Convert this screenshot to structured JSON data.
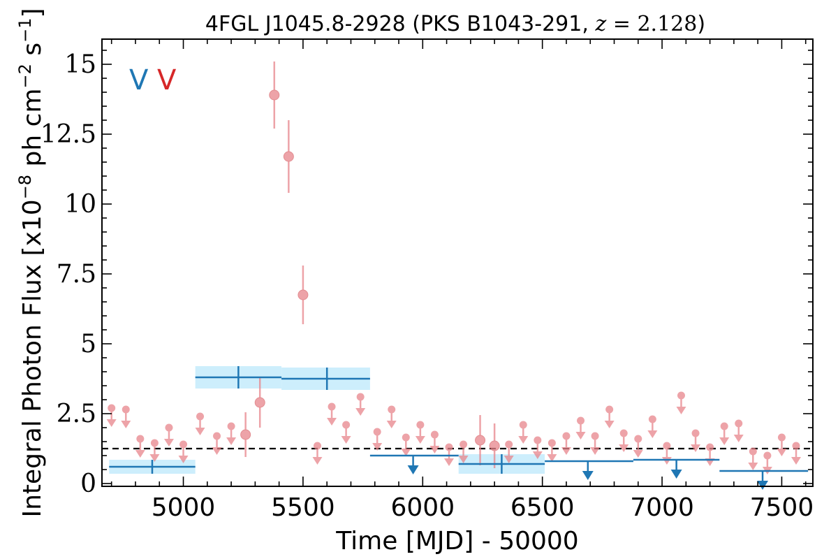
{
  "chart_data": {
    "type": "scatter",
    "title": "4FGL J1045.8-2928 (PKS B1043-291, z = 2.128)",
    "xlabel": "Time [MJD] - 50000",
    "ylabel": "Integral Photon Flux [x10^-8 ph cm^-2 s^-1]",
    "xlim": [
      4660,
      7630
    ],
    "ylim": [
      -0.1,
      15.9
    ],
    "x_ticks": [
      5000,
      5500,
      6000,
      6500,
      7000,
      7500
    ],
    "x_tick_labels": [
      "5000",
      "5500",
      "6000",
      "6500",
      "7000",
      "7500"
    ],
    "y_ticks": [
      0,
      2.5,
      5,
      7.5,
      10,
      12.5,
      15
    ],
    "y_tick_labels": [
      "0",
      "2.5",
      "5",
      "7.5",
      "10",
      "12.5",
      "15"
    ],
    "mean_flux": 1.25,
    "markers": [
      {
        "label": "V",
        "color": "#1f77b4"
      },
      {
        "label": "V",
        "color": "#d62728"
      }
    ],
    "colors": {
      "fine": "#e8858b",
      "coarse": "#1f77b4",
      "band": "#cdeefc",
      "mean_line": "#000000"
    },
    "series": [
      {
        "kind": "fine_detections",
        "points": [
          {
            "x": 5260,
            "y": 1.75,
            "err": 0.8
          },
          {
            "x": 5320,
            "y": 2.9,
            "err": 0.9
          },
          {
            "x": 5380,
            "y": 13.9,
            "err": 1.2
          },
          {
            "x": 5440,
            "y": 11.7,
            "err": 1.3
          },
          {
            "x": 5500,
            "y": 6.75,
            "err": 1.05
          },
          {
            "x": 6240,
            "y": 1.55,
            "err": 0.9
          },
          {
            "x": 6300,
            "y": 1.35,
            "err": 0.8
          }
        ]
      },
      {
        "kind": "fine_upper_limits",
        "points": [
          {
            "x": 4700,
            "y": 2.7
          },
          {
            "x": 4760,
            "y": 2.65
          },
          {
            "x": 4820,
            "y": 1.6
          },
          {
            "x": 4880,
            "y": 1.45
          },
          {
            "x": 4940,
            "y": 2.0
          },
          {
            "x": 5000,
            "y": 1.4
          },
          {
            "x": 5070,
            "y": 2.4
          },
          {
            "x": 5140,
            "y": 1.7
          },
          {
            "x": 5200,
            "y": 2.05
          },
          {
            "x": 5560,
            "y": 1.35
          },
          {
            "x": 5620,
            "y": 2.75
          },
          {
            "x": 5680,
            "y": 2.1
          },
          {
            "x": 5740,
            "y": 3.1
          },
          {
            "x": 5810,
            "y": 1.85
          },
          {
            "x": 5870,
            "y": 2.65
          },
          {
            "x": 5930,
            "y": 1.65
          },
          {
            "x": 5990,
            "y": 2.1
          },
          {
            "x": 6050,
            "y": 1.75
          },
          {
            "x": 6110,
            "y": 1.3
          },
          {
            "x": 6170,
            "y": 1.4
          },
          {
            "x": 6360,
            "y": 1.4
          },
          {
            "x": 6420,
            "y": 2.1
          },
          {
            "x": 6480,
            "y": 1.55
          },
          {
            "x": 6540,
            "y": 1.45
          },
          {
            "x": 6600,
            "y": 1.7
          },
          {
            "x": 6660,
            "y": 2.25
          },
          {
            "x": 6720,
            "y": 1.7
          },
          {
            "x": 6780,
            "y": 2.65
          },
          {
            "x": 6840,
            "y": 1.8
          },
          {
            "x": 6900,
            "y": 1.6
          },
          {
            "x": 6960,
            "y": 2.3
          },
          {
            "x": 7020,
            "y": 1.35
          },
          {
            "x": 7080,
            "y": 3.15
          },
          {
            "x": 7140,
            "y": 1.8
          },
          {
            "x": 7200,
            "y": 1.3
          },
          {
            "x": 7260,
            "y": 2.05
          },
          {
            "x": 7320,
            "y": 2.15
          },
          {
            "x": 7380,
            "y": 1.15
          },
          {
            "x": 7440,
            "y": 1.0
          },
          {
            "x": 7500,
            "y": 1.65
          },
          {
            "x": 7560,
            "y": 1.35
          }
        ]
      },
      {
        "kind": "coarse_detections",
        "points": [
          {
            "x": 4870,
            "x0": 4690,
            "x1": 5050,
            "y": 0.6,
            "err": 0.25
          },
          {
            "x": 5230,
            "x0": 5050,
            "x1": 5410,
            "y": 3.8,
            "err": 0.4
          },
          {
            "x": 5600,
            "x0": 5410,
            "x1": 5780,
            "y": 3.75,
            "err": 0.4
          },
          {
            "x": 6330,
            "x0": 6150,
            "x1": 6510,
            "y": 0.7,
            "err": 0.35
          }
        ]
      },
      {
        "kind": "coarse_upper_limits",
        "points": [
          {
            "x": 5960,
            "x0": 5780,
            "x1": 6150,
            "y": 1.0
          },
          {
            "x": 6690,
            "x0": 6510,
            "x1": 6880,
            "y": 0.8
          },
          {
            "x": 7060,
            "x0": 6880,
            "x1": 7240,
            "y": 0.85
          },
          {
            "x": 7420,
            "x0": 7240,
            "x1": 7610,
            "y": 0.45
          }
        ]
      }
    ]
  }
}
